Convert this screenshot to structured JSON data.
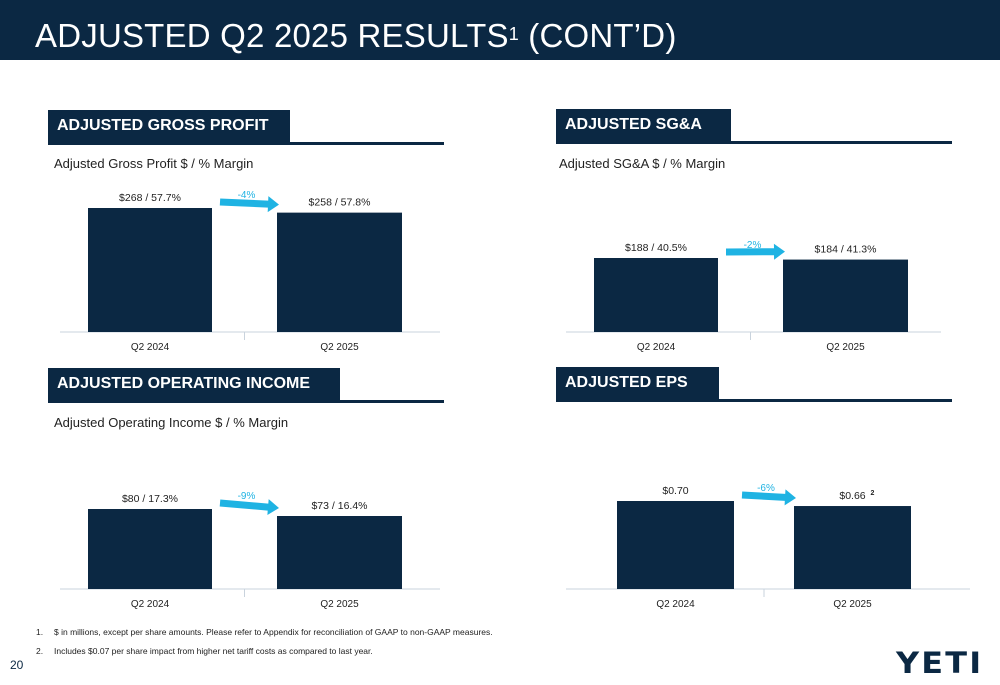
{
  "page": {
    "title_main": "ADJUSTED Q2 2025 RESULTS",
    "title_sup": "1",
    "title_tail": " (CONT’D)",
    "page_number": "20",
    "logo_text": "YETI"
  },
  "footnotes": [
    {
      "num": "1.",
      "text": "$ in millions, except per share amounts.  Please refer to Appendix for reconciliation of GAAP to non-GAAP measures."
    },
    {
      "num": "2.",
      "text": "Includes $0.07 per share impact from higher net tariff costs as compared to last year."
    }
  ],
  "colors": {
    "navy": "#0b2843",
    "arrow": "#1fb3e3",
    "axis": "#c9d3dd"
  },
  "panels": [
    {
      "header": "ADJUSTED GROSS PROFIT",
      "subtitle": "Adjusted Gross Profit $ / % Margin",
      "change_label": "-4%"
    },
    {
      "header": "ADJUSTED SG&A",
      "subtitle": "Adjusted SG&A $ / % Margin",
      "change_label": "-2%"
    },
    {
      "header": "ADJUSTED OPERATING INCOME",
      "subtitle": "Adjusted Operating Income $ / % Margin",
      "change_label": "-9%"
    },
    {
      "header": "ADJUSTED EPS",
      "subtitle": "",
      "change_label": "-6%"
    }
  ],
  "chart_data": [
    {
      "type": "bar",
      "categories": [
        "Q2 2024",
        "Q2 2025"
      ],
      "values": [
        268,
        258
      ],
      "margins_pct": [
        57.7,
        57.8
      ],
      "data_labels": [
        "$268 / 57.7%",
        "$258 / 57.8%"
      ],
      "title": "Adjusted Gross Profit $ / % Margin",
      "change": "-4%"
    },
    {
      "type": "bar",
      "categories": [
        "Q2 2024",
        "Q2 2025"
      ],
      "values": [
        188,
        184
      ],
      "margins_pct": [
        40.5,
        41.3
      ],
      "data_labels": [
        "$188 / 40.5%",
        "$184 / 41.3%"
      ],
      "title": "Adjusted SG&A $ / % Margin",
      "change": "-2%"
    },
    {
      "type": "bar",
      "categories": [
        "Q2 2024",
        "Q2 2025"
      ],
      "values": [
        80,
        73
      ],
      "margins_pct": [
        17.3,
        16.4
      ],
      "data_labels": [
        "$80 / 17.3%",
        "$73 / 16.4%"
      ],
      "title": "Adjusted Operating Income $ / % Margin",
      "change": "-9%"
    },
    {
      "type": "bar",
      "categories": [
        "Q2 2024",
        "Q2 2025"
      ],
      "values": [
        0.7,
        0.66
      ],
      "data_labels": [
        "$0.70",
        "$0.66"
      ],
      "footnote_marker": [
        "",
        "2"
      ],
      "title": "ADJUSTED EPS",
      "change": "-6%"
    }
  ]
}
